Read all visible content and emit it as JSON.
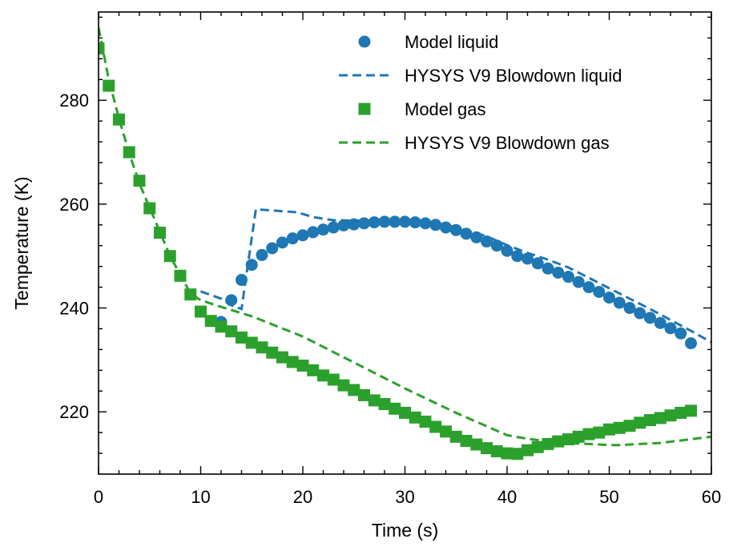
{
  "chart_data": {
    "type": "line",
    "xlabel": "Time (s)",
    "ylabel": "Temperature (K)",
    "xlim": [
      0,
      60
    ],
    "ylim": [
      208,
      297
    ],
    "xticks": [
      0,
      10,
      20,
      30,
      40,
      50,
      60
    ],
    "yticks": [
      220,
      240,
      260,
      280
    ],
    "grid": false,
    "legend_position": "top-right",
    "series": [
      {
        "name": "Model liquid",
        "kind": "scatter",
        "marker": "circle",
        "color": "#1f77b4",
        "x": [
          12,
          13,
          14,
          15,
          16,
          17,
          18,
          19,
          20,
          21,
          22,
          23,
          24,
          25,
          26,
          27,
          28,
          29,
          30,
          31,
          32,
          33,
          34,
          35,
          36,
          37,
          38,
          39,
          40,
          41,
          42,
          43,
          44,
          45,
          46,
          47,
          48,
          49,
          50,
          51,
          52,
          53,
          54,
          55,
          56,
          57,
          58
        ],
        "y": [
          237.3,
          241.5,
          245.4,
          248.3,
          250.2,
          251.5,
          252.6,
          253.4,
          254.0,
          254.6,
          255.1,
          255.5,
          255.9,
          256.1,
          256.3,
          256.5,
          256.6,
          256.6,
          256.6,
          256.5,
          256.3,
          256.0,
          255.5,
          255.0,
          254.3,
          253.6,
          252.8,
          252.0,
          251.0,
          250.0,
          249.5,
          248.6,
          247.6,
          246.8,
          246.0,
          245.0,
          244.0,
          243.1,
          242.0,
          241.0,
          240.0,
          239.0,
          238.1,
          237.1,
          236.1,
          235.1,
          233.2
        ]
      },
      {
        "name": "HYSYS V9 Blowdown liquid",
        "kind": "line",
        "dash": "dashed",
        "color": "#1f77b4",
        "x": [
          10,
          12,
          13,
          14,
          15.4,
          17,
          19.5,
          21,
          23,
          26,
          28,
          30,
          32,
          34,
          36,
          38,
          40,
          42,
          44,
          46,
          48,
          50,
          52,
          54,
          56,
          58,
          60
        ],
        "y": [
          243.2,
          241.8,
          240.5,
          239.8,
          259.0,
          258.8,
          258.4,
          257.5,
          256.9,
          256.8,
          256.7,
          256.6,
          256.4,
          256.0,
          255.0,
          253.8,
          252.1,
          250.6,
          249.3,
          247.8,
          245.8,
          243.8,
          241.8,
          239.8,
          237.7,
          235.6,
          233.4
        ]
      },
      {
        "name": "Model gas",
        "kind": "scatter",
        "marker": "square",
        "color": "#2ca02c",
        "x": [
          0,
          1,
          2,
          3,
          4,
          5,
          6,
          7,
          8,
          9,
          10,
          11,
          12,
          13,
          14,
          15,
          16,
          17,
          18,
          19,
          20,
          21,
          22,
          23,
          24,
          25,
          26,
          27,
          28,
          29,
          30,
          31,
          32,
          33,
          34,
          35,
          36,
          37,
          38,
          39,
          40,
          41,
          42,
          43,
          44,
          45,
          46,
          47,
          48,
          49,
          50,
          51,
          52,
          53,
          54,
          55,
          56,
          57,
          58
        ],
        "y": [
          290.0,
          282.8,
          276.3,
          270.0,
          264.5,
          259.2,
          254.5,
          250.0,
          246.2,
          242.6,
          239.3,
          237.5,
          236.4,
          235.5,
          234.3,
          233.3,
          232.4,
          231.4,
          230.5,
          229.6,
          228.9,
          228.0,
          227.0,
          226.2,
          225.1,
          224.2,
          223.2,
          222.2,
          221.5,
          220.6,
          219.8,
          218.9,
          218.1,
          217.1,
          216.2,
          215.2,
          214.4,
          213.7,
          213.0,
          212.4,
          212.0,
          211.9,
          212.6,
          213.2,
          213.8,
          214.3,
          214.7,
          215.2,
          215.7,
          216.0,
          216.6,
          216.9,
          217.3,
          217.9,
          218.4,
          218.8,
          219.3,
          219.8,
          220.2
        ]
      },
      {
        "name": "HYSYS V9 Blowdown gas",
        "kind": "line",
        "dash": "dashed",
        "color": "#2ca02c",
        "x": [
          0,
          0.5,
          1,
          2,
          3,
          4,
          5,
          6,
          7,
          8,
          9,
          10,
          12,
          15,
          20,
          25,
          30,
          35,
          40,
          42,
          45,
          50,
          51,
          55,
          60
        ],
        "y": [
          294,
          289,
          284,
          276.5,
          269.8,
          264.0,
          259.3,
          254.7,
          250.0,
          246.4,
          242.8,
          241.5,
          240.2,
          238.4,
          234.5,
          229.5,
          224.5,
          219.8,
          215.5,
          214.8,
          214.1,
          213.6,
          213.6,
          214.0,
          215.2
        ]
      }
    ]
  }
}
